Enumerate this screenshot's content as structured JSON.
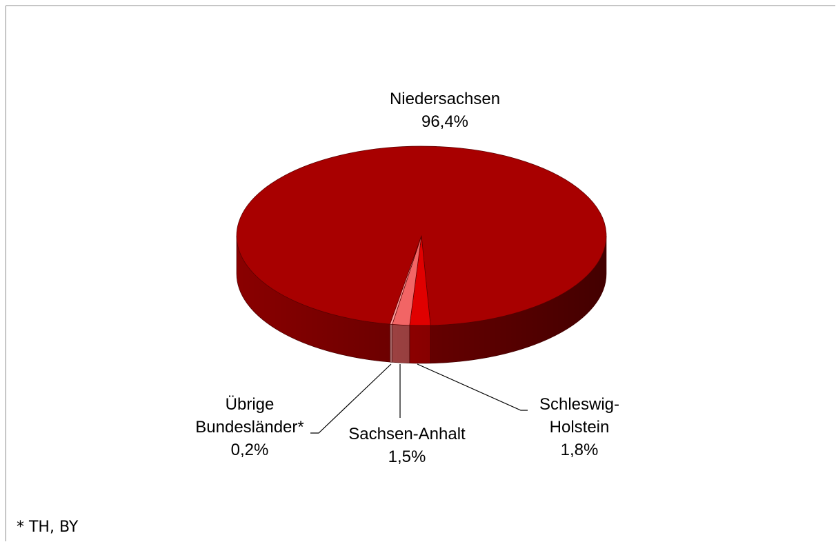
{
  "chart_data": {
    "type": "pie",
    "categories": [
      "Niedersachsen",
      "Schleswig-Holstein",
      "Sachsen-Anhalt",
      "Übrige Bundesländer*"
    ],
    "values": [
      96.4,
      1.8,
      1.5,
      0.2
    ],
    "value_labels": [
      "96,4%",
      "1,8%",
      "1,5%",
      "0,2%"
    ],
    "colors": [
      "#a80000",
      "#e00000",
      "#f26565",
      "#ff9c9c"
    ],
    "footnote": "* TH, BY"
  }
}
